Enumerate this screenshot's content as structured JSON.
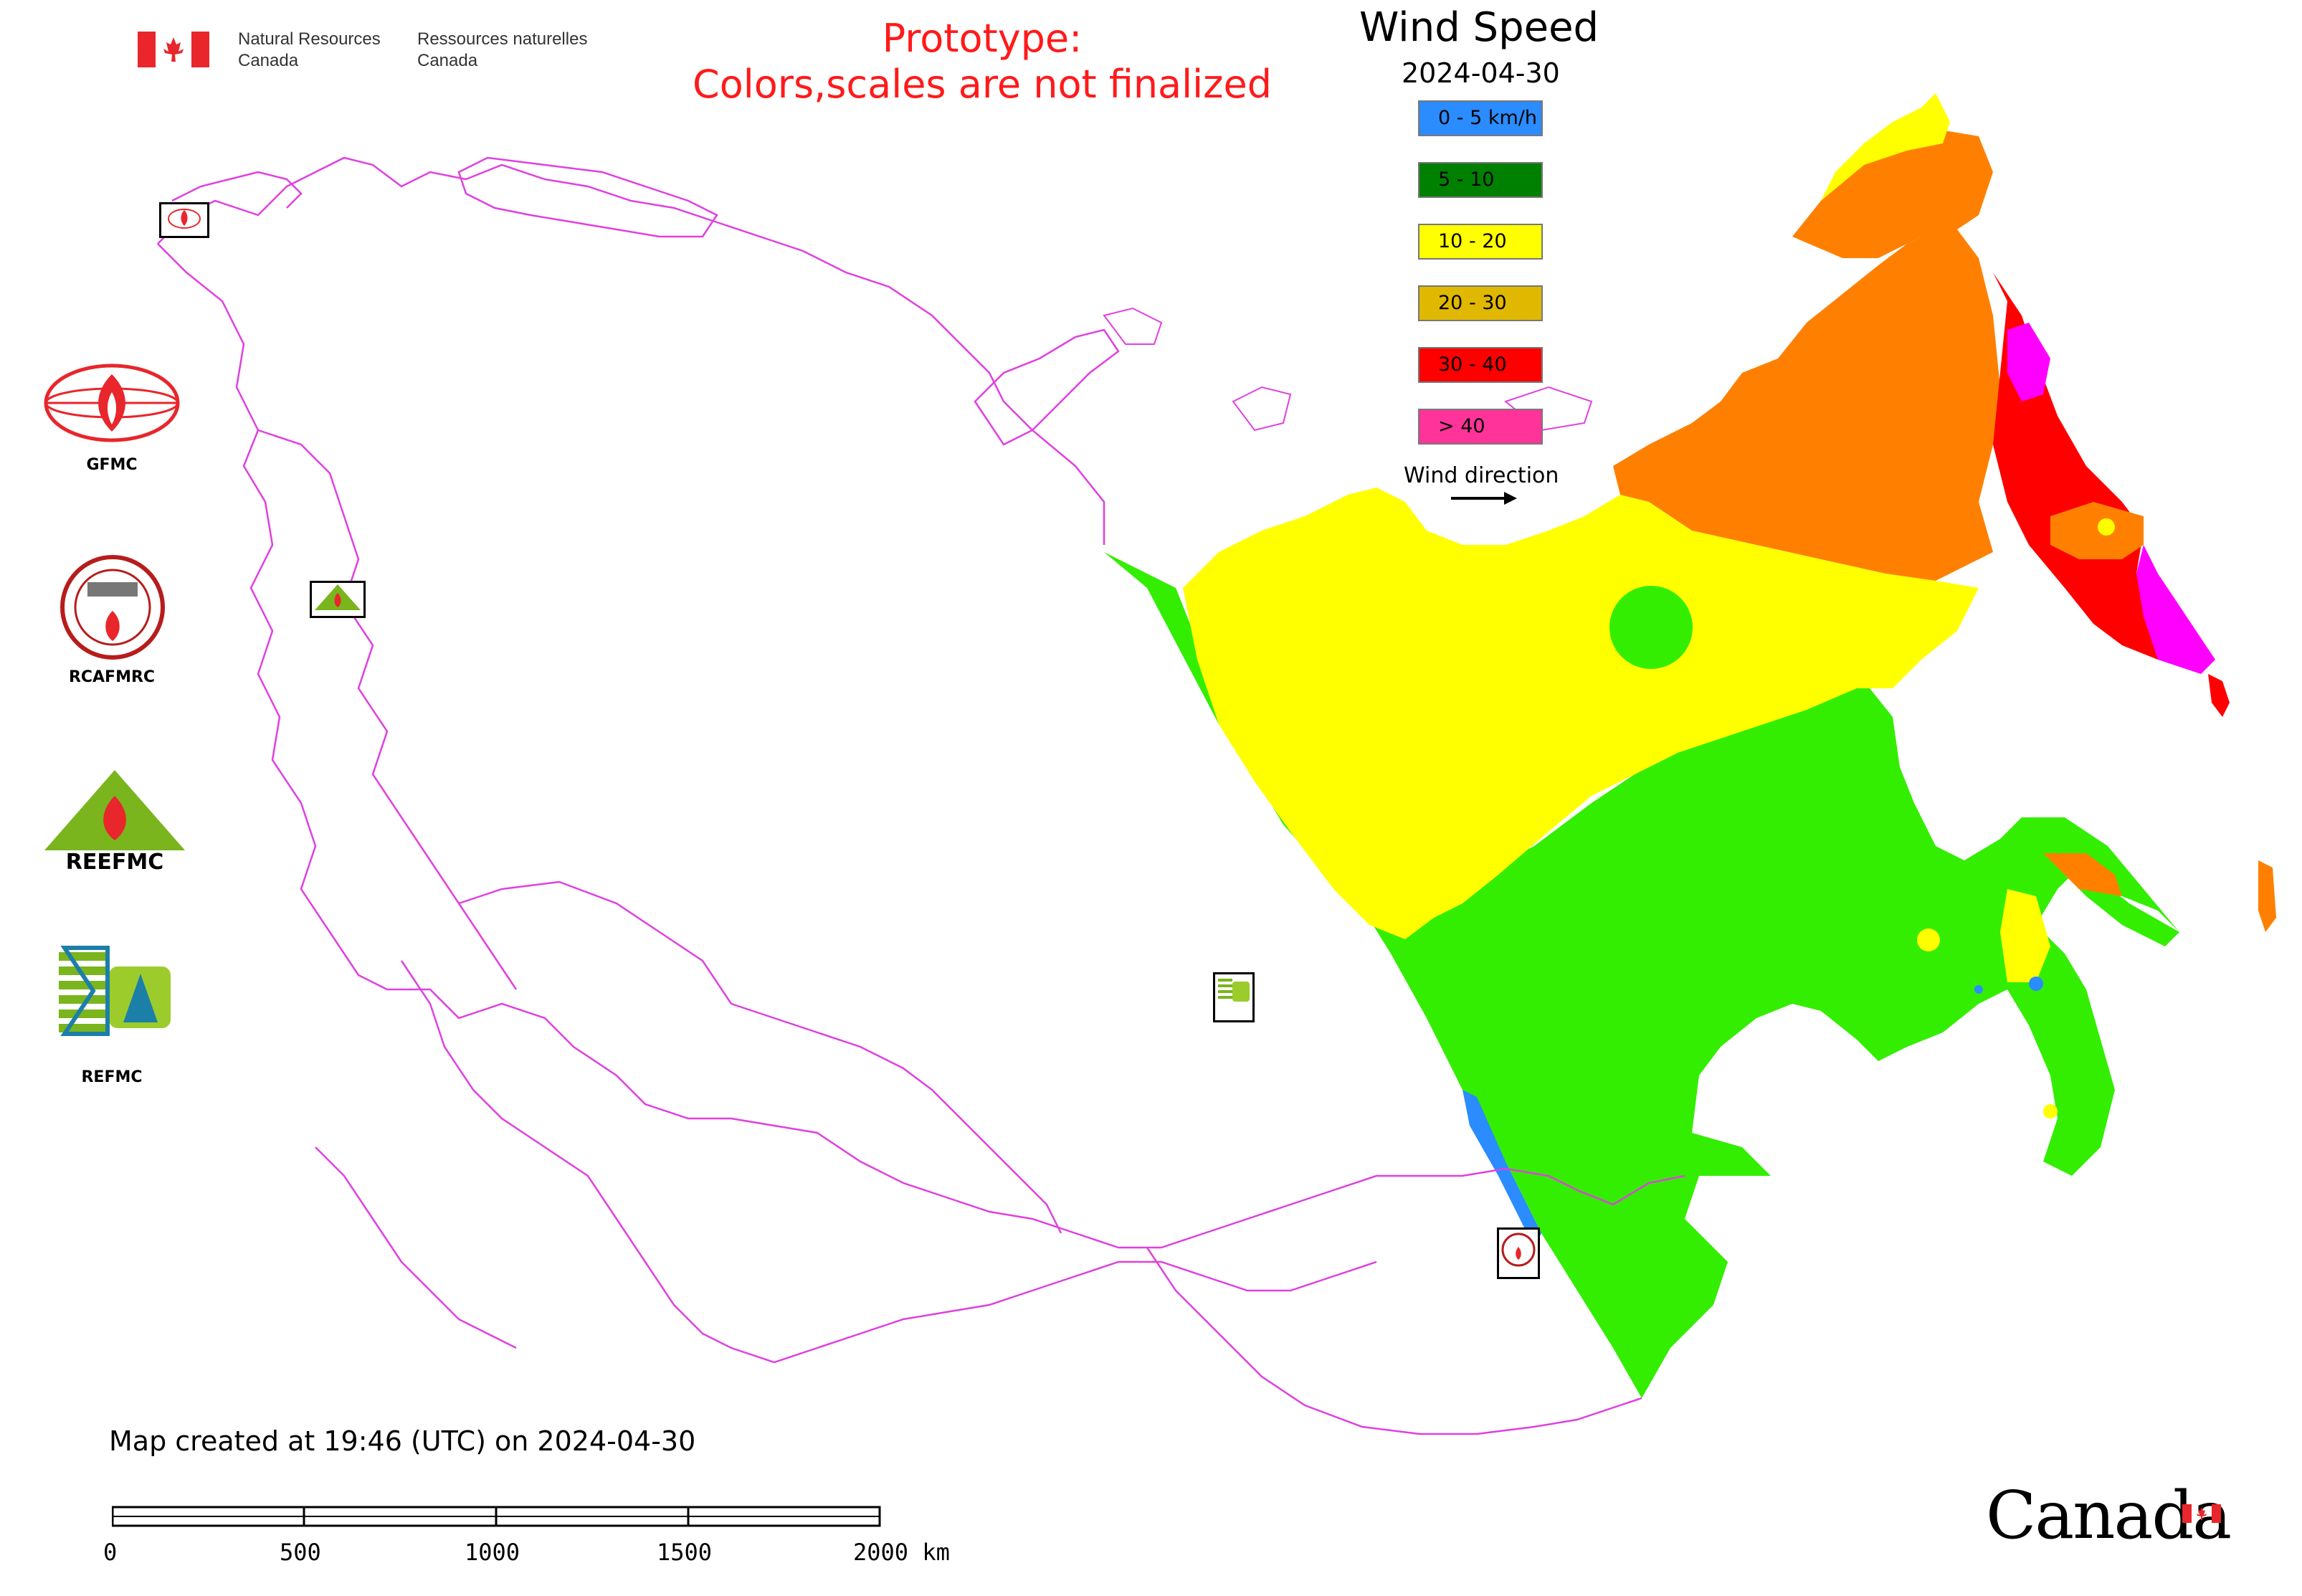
{
  "header": {
    "agency_en_line1": "Natural Resources",
    "agency_en_line2": "Canada",
    "agency_fr_line1": "Ressources naturelles",
    "agency_fr_line2": "Canada",
    "prototype_line1": "Prototype:",
    "prototype_line2": "Colors,scales are not finalized"
  },
  "legend": {
    "title": "Wind Speed",
    "date": "2024-04-30",
    "classes": [
      {
        "label": "0 - 5 km/h",
        "color": "#2a8cff"
      },
      {
        "label": "5 - 10",
        "color": "#008000"
      },
      {
        "label": "10 - 20",
        "color": "#ffff00"
      },
      {
        "label": "20 - 30",
        "color": "#e0b800"
      },
      {
        "label": "30 - 40",
        "color": "#ff0000"
      },
      {
        "label": "> 40",
        "color": "#ff3399"
      }
    ],
    "wind_direction_label": "Wind direction"
  },
  "map_colors": {
    "border_lines": "#e040e0",
    "green_zone": "#33ee00",
    "yellow_zone": "#ffff00",
    "orange_zone": "#ff8000",
    "red_zone": "#ff0000",
    "magenta_zone": "#ff00ff",
    "blue_zone": "#2a8cff"
  },
  "logos": [
    {
      "name": "GFMC",
      "label": "GFMC"
    },
    {
      "name": "RCAFMRC",
      "label": "RCAFMRC"
    },
    {
      "name": "REEFMC",
      "label": "REEFMC"
    },
    {
      "name": "REFMC",
      "label": "REFMC"
    }
  ],
  "footer": {
    "created_text": "Map created at 19:46 (UTC) on 2024-04-30",
    "scale_ticks": [
      "0",
      "500",
      "1000",
      "1500",
      "2000 km"
    ],
    "wordmark": "Canada"
  }
}
